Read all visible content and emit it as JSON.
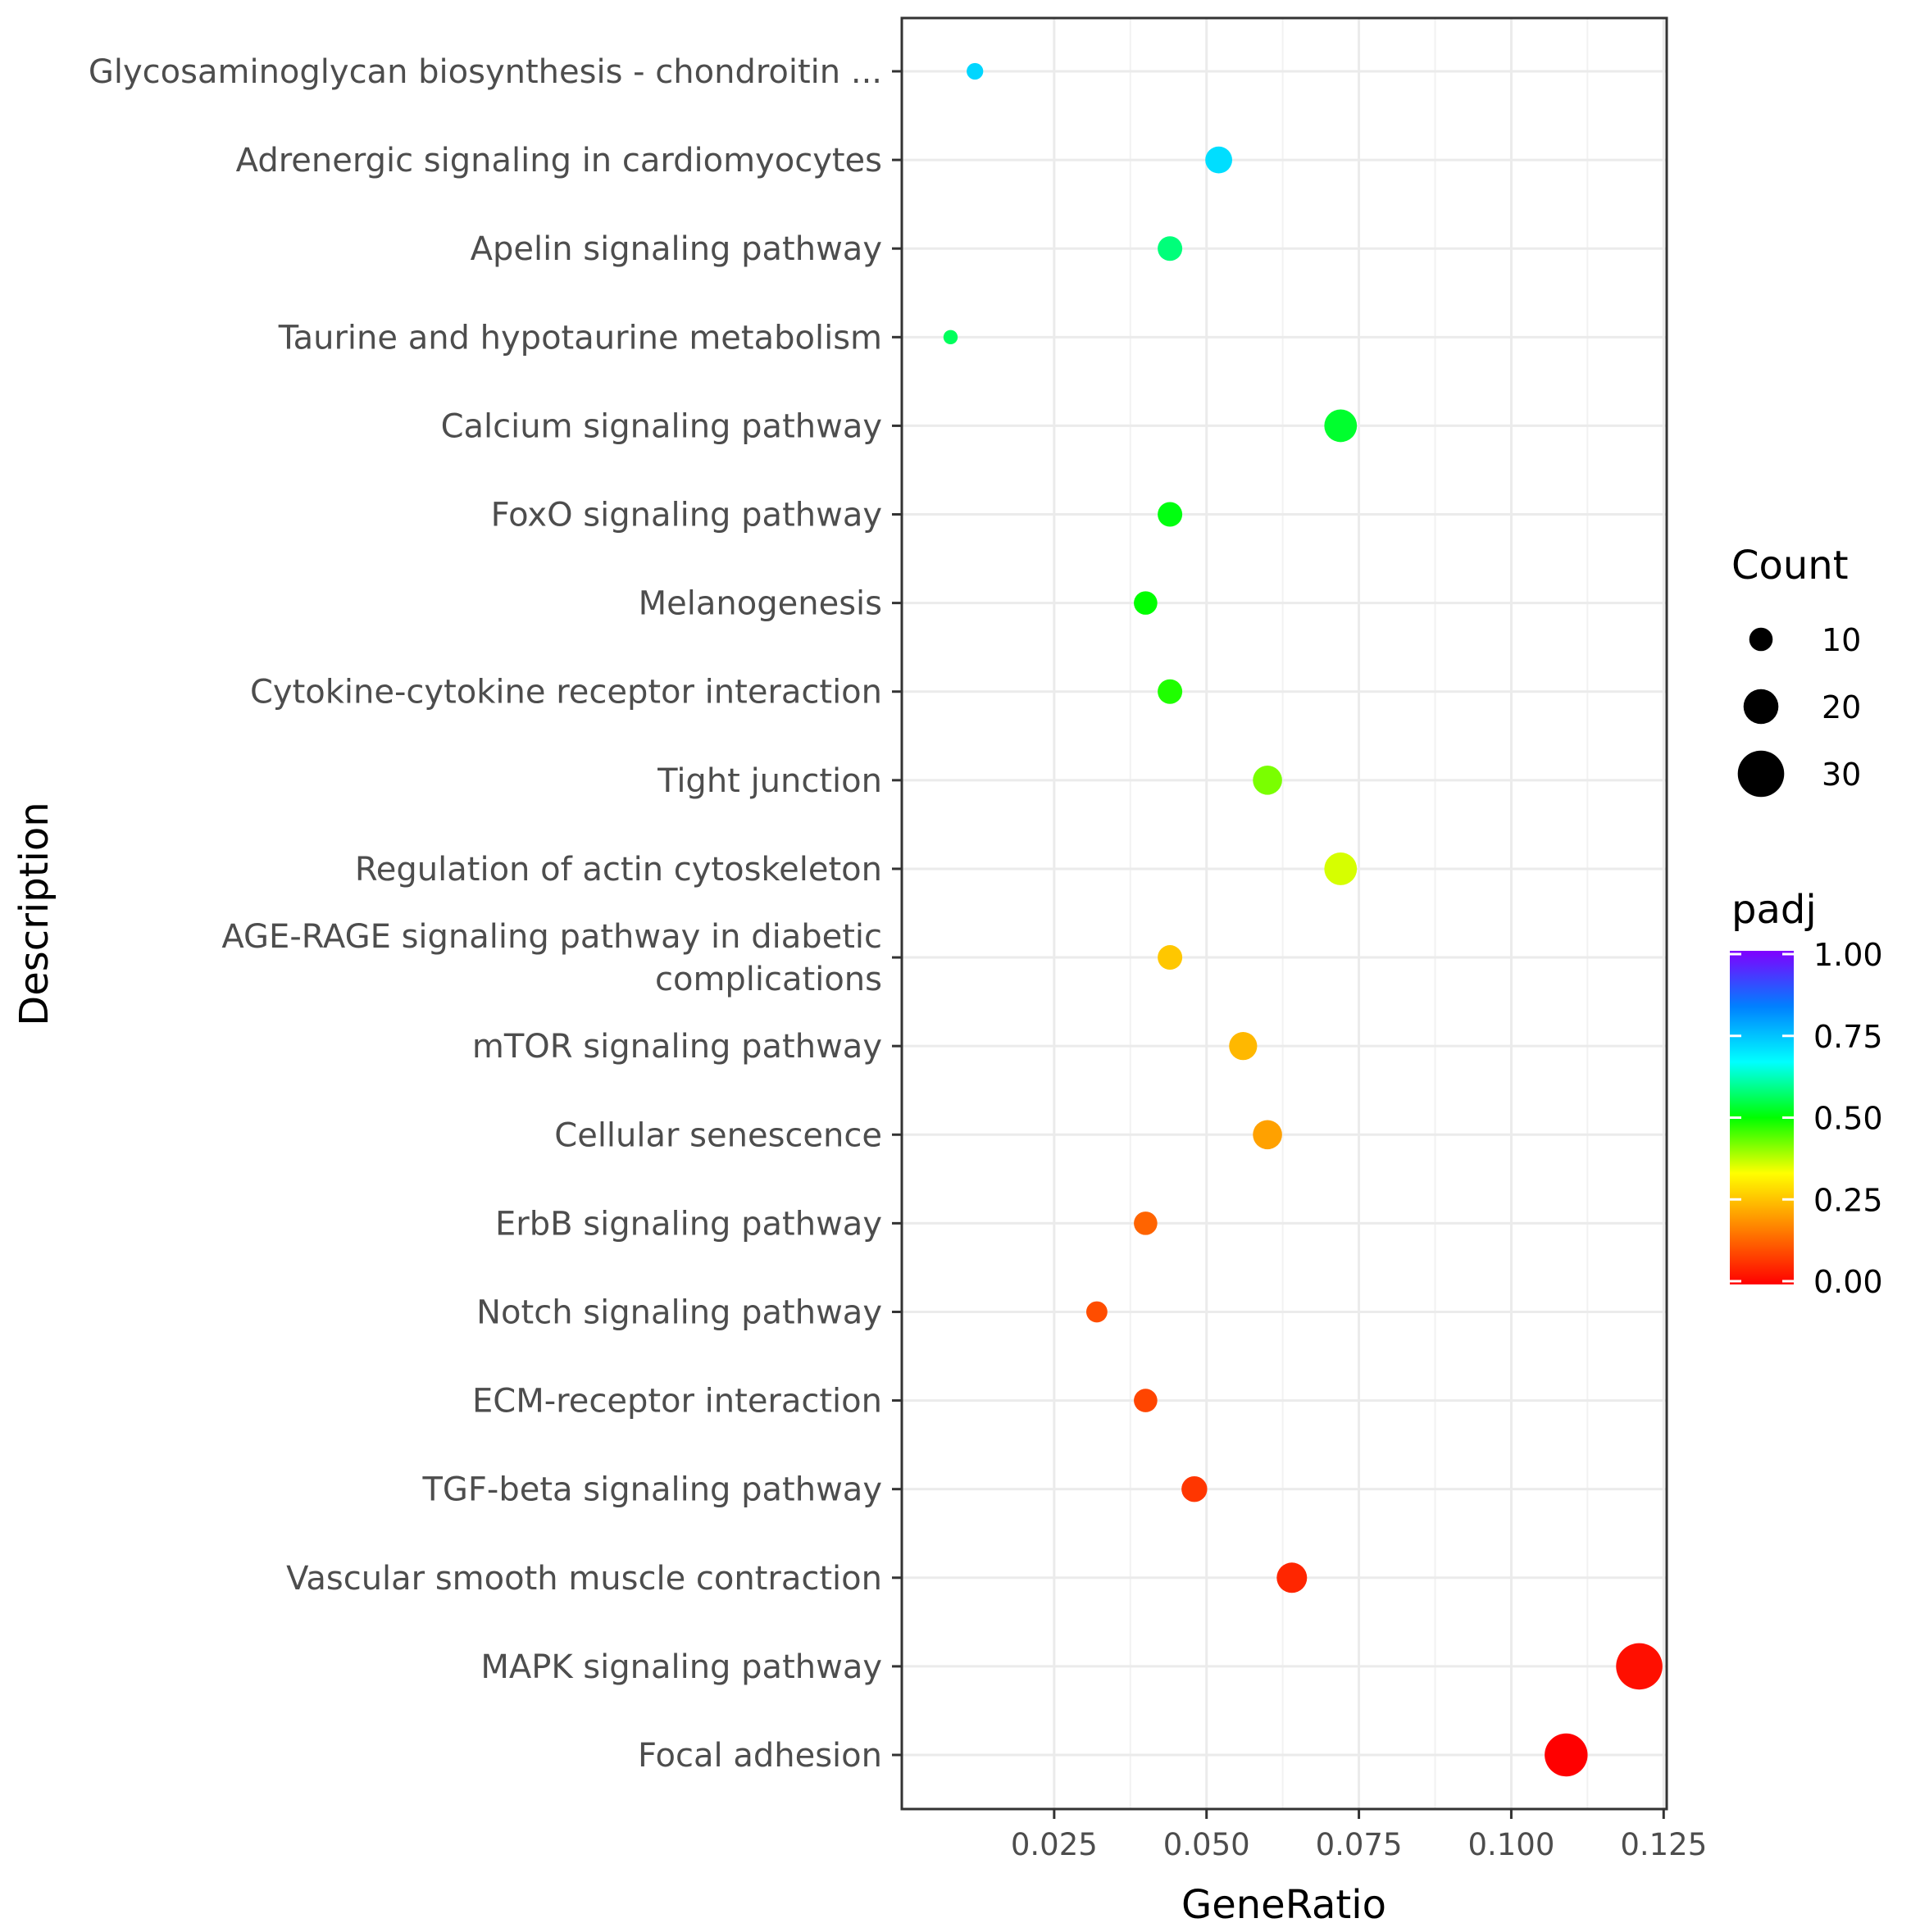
{
  "chart_data": {
    "type": "scatter",
    "title": "",
    "xlabel": "GeneRatio",
    "ylabel": "Description",
    "xlim": [
      0.0,
      0.1255
    ],
    "xticks": [
      0.025,
      0.05,
      0.075,
      0.1,
      0.125
    ],
    "xtick_labels": [
      "0.025",
      "0.050",
      "0.075",
      "0.100",
      "0.125"
    ],
    "grid": true,
    "points": [
      {
        "label": [
          "Glycosaminoglycan biosynthesis - chondroitin ..."
        ],
        "gene_ratio": 0.012,
        "count": 4,
        "padj": 0.72
      },
      {
        "label": [
          "Adrenergic signaling in cardiomyocytes"
        ],
        "gene_ratio": 0.052,
        "count": 13,
        "padj": 0.71
      },
      {
        "label": [
          "Apelin signaling pathway"
        ],
        "gene_ratio": 0.044,
        "count": 11,
        "padj": 0.58
      },
      {
        "label": [
          "Taurine and hypotaurine metabolism"
        ],
        "gene_ratio": 0.008,
        "count": 2,
        "padj": 0.56
      },
      {
        "label": [
          "Calcium signaling pathway"
        ],
        "gene_ratio": 0.072,
        "count": 18,
        "padj": 0.53
      },
      {
        "label": [
          "FoxO signaling pathway"
        ],
        "gene_ratio": 0.044,
        "count": 11,
        "padj": 0.51
      },
      {
        "label": [
          "Melanogenesis"
        ],
        "gene_ratio": 0.04,
        "count": 10,
        "padj": 0.5
      },
      {
        "label": [
          "Cytokine-cytokine receptor interaction"
        ],
        "gene_ratio": 0.044,
        "count": 11,
        "padj": 0.48
      },
      {
        "label": [
          "Tight junction"
        ],
        "gene_ratio": 0.06,
        "count": 15,
        "padj": 0.42
      },
      {
        "label": [
          "Regulation of actin cytoskeleton"
        ],
        "gene_ratio": 0.072,
        "count": 18,
        "padj": 0.36
      },
      {
        "label": [
          "AGE-RAGE signaling pathway in diabetic",
          "complications"
        ],
        "gene_ratio": 0.044,
        "count": 11,
        "padj": 0.26
      },
      {
        "label": [
          "mTOR signaling pathway"
        ],
        "gene_ratio": 0.056,
        "count": 14,
        "padj": 0.24
      },
      {
        "label": [
          "Cellular senescence"
        ],
        "gene_ratio": 0.06,
        "count": 15,
        "padj": 0.21
      },
      {
        "label": [
          "ErbB signaling pathway"
        ],
        "gene_ratio": 0.04,
        "count": 10,
        "padj": 0.13
      },
      {
        "label": [
          "Notch signaling pathway"
        ],
        "gene_ratio": 0.032,
        "count": 8,
        "padj": 0.1
      },
      {
        "label": [
          "ECM-receptor interaction"
        ],
        "gene_ratio": 0.04,
        "count": 10,
        "padj": 0.09
      },
      {
        "label": [
          "TGF-beta signaling pathway"
        ],
        "gene_ratio": 0.048,
        "count": 12,
        "padj": 0.07
      },
      {
        "label": [
          "Vascular smooth muscle contraction"
        ],
        "gene_ratio": 0.064,
        "count": 16,
        "padj": 0.05
      },
      {
        "label": [
          "MAPK signaling pathway"
        ],
        "gene_ratio": 0.121,
        "count": 30,
        "padj": 0.02
      },
      {
        "label": [
          "Focal adhesion"
        ],
        "gene_ratio": 0.109,
        "count": 27,
        "padj": 0.0
      }
    ],
    "legend_size": {
      "title": "Count",
      "entries": [
        {
          "count": 10,
          "label": "10"
        },
        {
          "count": 20,
          "label": "20"
        },
        {
          "count": 30,
          "label": "30"
        }
      ]
    },
    "legend_color": {
      "title": "padj",
      "range": [
        0,
        1
      ],
      "ticks": [
        1.0,
        0.75,
        0.5,
        0.25,
        0.0
      ],
      "tick_labels": [
        "1.00",
        "0.75",
        "0.50",
        "0.25",
        "0.00"
      ],
      "colors": [
        "#ff0000",
        "#ff8000",
        "#ffff00",
        "#00ff00",
        "#00ffff",
        "#0080ff",
        "#8000ff"
      ]
    },
    "legend_position": "right"
  }
}
